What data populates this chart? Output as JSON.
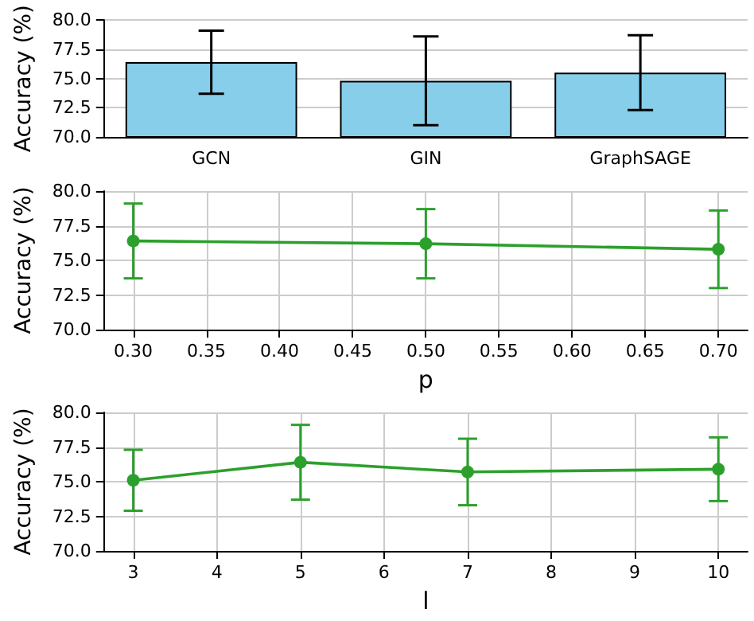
{
  "chart_data": [
    {
      "type": "bar",
      "categories": [
        "GCN",
        "GIN",
        "GraphSAGE"
      ],
      "ylabel": "Accuracy (%)",
      "ylim": [
        70,
        80
      ],
      "yticks": [
        {
          "value": 70,
          "label": "70.0"
        },
        {
          "value": 72.5,
          "label": "72.5"
        },
        {
          "value": 75,
          "label": "75.0"
        },
        {
          "value": 77.5,
          "label": "77.5"
        },
        {
          "value": 80,
          "label": "80.0"
        }
      ],
      "grid": "y",
      "series": [
        {
          "color": "#87ceeb",
          "values": [
            76.4,
            74.8,
            75.5
          ],
          "errors": [
            [
              73.7,
              79.1
            ],
            [
              71.0,
              78.6
            ],
            [
              72.3,
              78.7
            ]
          ]
        }
      ]
    },
    {
      "type": "line",
      "x": [
        0.3,
        0.5,
        0.7
      ],
      "xlabel": "p",
      "ylabel": "Accuracy (%)",
      "xlim": [
        0.28,
        0.72
      ],
      "xticks": [
        {
          "value": 0.3,
          "label": "0.30"
        },
        {
          "value": 0.35,
          "label": "0.35"
        },
        {
          "value": 0.4,
          "label": "0.40"
        },
        {
          "value": 0.45,
          "label": "0.45"
        },
        {
          "value": 0.5,
          "label": "0.50"
        },
        {
          "value": 0.55,
          "label": "0.55"
        },
        {
          "value": 0.6,
          "label": "0.60"
        },
        {
          "value": 0.65,
          "label": "0.65"
        },
        {
          "value": 0.7,
          "label": "0.70"
        }
      ],
      "ylim": [
        70,
        80
      ],
      "yticks": [
        {
          "value": 70,
          "label": "70.0"
        },
        {
          "value": 72.5,
          "label": "72.5"
        },
        {
          "value": 75,
          "label": "75.0"
        },
        {
          "value": 77.5,
          "label": "77.5"
        },
        {
          "value": 80,
          "label": "80.0"
        }
      ],
      "grid": true,
      "marker": "circle",
      "series": [
        {
          "color": "#2ca02c",
          "values": [
            76.4,
            76.2,
            75.8
          ],
          "errors": [
            [
              73.7,
              79.1
            ],
            [
              73.7,
              78.7
            ],
            [
              73.0,
              78.6
            ]
          ]
        }
      ]
    },
    {
      "type": "line",
      "x": [
        3,
        5,
        7,
        10
      ],
      "xlabel": "l",
      "ylabel": "Accuracy (%)",
      "xlim": [
        2.65,
        10.35
      ],
      "xticks": [
        3,
        4,
        5,
        6,
        7,
        8,
        9,
        10
      ],
      "ylim": [
        70,
        80
      ],
      "yticks": [
        {
          "value": 70,
          "label": "70.0"
        },
        {
          "value": 72.5,
          "label": "72.5"
        },
        {
          "value": 75,
          "label": "75.0"
        },
        {
          "value": 77.5,
          "label": "77.5"
        },
        {
          "value": 80,
          "label": "80.0"
        }
      ],
      "grid": true,
      "marker": "circle",
      "series": [
        {
          "color": "#2ca02c",
          "values": [
            75.1,
            76.4,
            75.7,
            75.9
          ],
          "errors": [
            [
              72.9,
              77.3
            ],
            [
              73.7,
              79.1
            ],
            [
              73.3,
              78.1
            ],
            [
              73.6,
              78.2
            ]
          ]
        }
      ]
    }
  ]
}
